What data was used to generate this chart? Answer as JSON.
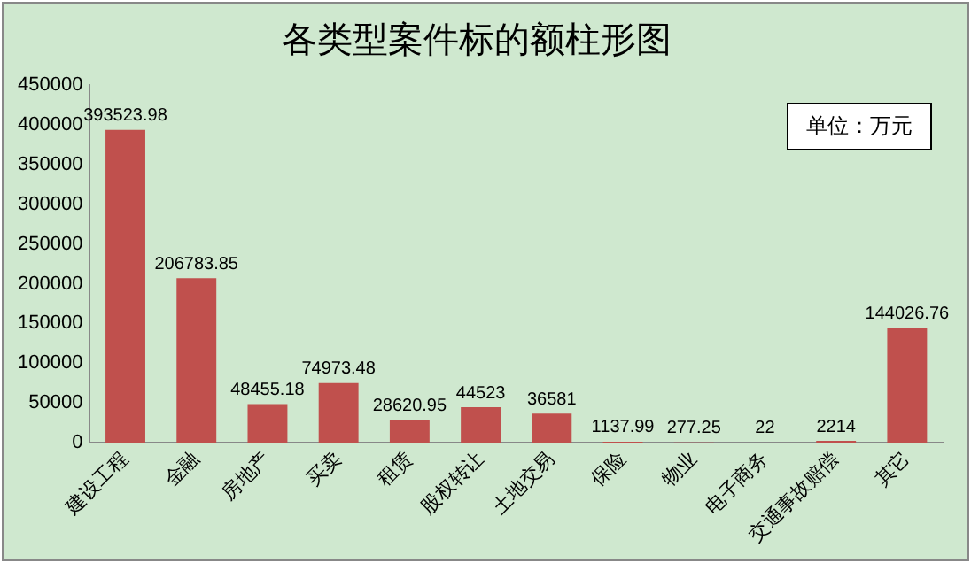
{
  "chart_data": {
    "type": "bar",
    "title": "各类型案件标的额柱形图",
    "categories": [
      "建设工程",
      "金融",
      "房地产",
      "买卖",
      "租赁",
      "股权转让",
      "土地交易",
      "保险",
      "物业",
      "电子商务",
      "交通事故赔偿",
      "其它"
    ],
    "values": [
      393523.98,
      206783.85,
      48455.18,
      74973.48,
      28620.95,
      44523,
      36581,
      1137.99,
      277.25,
      22,
      2214,
      144026.76
    ],
    "color": "#c0504d",
    "ylim": [
      0,
      450000
    ],
    "yticks": [
      0,
      50000,
      100000,
      150000,
      200000,
      250000,
      300000,
      350000,
      400000,
      450000
    ],
    "grid": false,
    "legend": false,
    "data_labels": true,
    "annotations": [
      "单位：万元"
    ]
  }
}
